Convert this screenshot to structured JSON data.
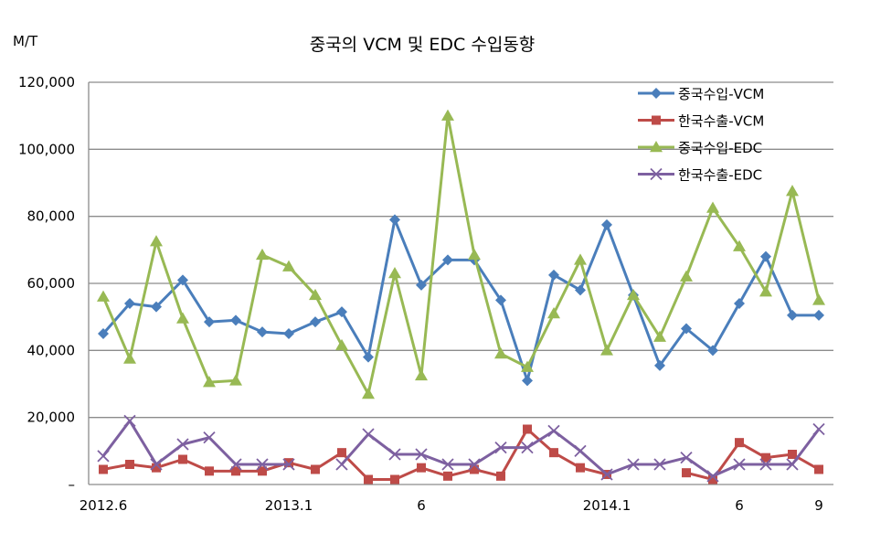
{
  "chart_data": {
    "type": "line",
    "title": "중국의 VCM 및 EDC 수입동향",
    "ylabel": "M/T",
    "xlabel": "",
    "ylim": [
      0,
      120000
    ],
    "yticks": [
      {
        "value": 0,
        "label": "–"
      },
      {
        "value": 20000,
        "label": "20,000"
      },
      {
        "value": 40000,
        "label": "40,000"
      },
      {
        "value": 60000,
        "label": "60,000"
      },
      {
        "value": 80000,
        "label": "80,000"
      },
      {
        "value": 100000,
        "label": "100,000"
      },
      {
        "value": 120000,
        "label": "120,000"
      }
    ],
    "grid": true,
    "legend_position": "top-right",
    "x_tick_labels": [
      {
        "index": 0,
        "label": "2012.6"
      },
      {
        "index": 7,
        "label": "2013.1"
      },
      {
        "index": 12,
        "label": "6"
      },
      {
        "index": 19,
        "label": "2014.1"
      },
      {
        "index": 24,
        "label": "6"
      },
      {
        "index": 27,
        "label": "9"
      }
    ],
    "categories": [
      "2012.6",
      "2012.7",
      "2012.8",
      "2012.9",
      "2012.10",
      "2012.11",
      "2012.12",
      "2013.1",
      "2013.2",
      "2013.3",
      "2013.4",
      "2013.5",
      "2013.6",
      "2013.7",
      "2013.8",
      "2013.9",
      "2013.10",
      "2013.11",
      "2013.12",
      "2014.1",
      "2014.2",
      "2014.3",
      "2014.4",
      "2014.5",
      "2014.6",
      "2014.7",
      "2014.8",
      "2014.9"
    ],
    "series": [
      {
        "name": "중국수입-VCM",
        "color": "#4a7ebb",
        "marker": "diamond",
        "values": [
          45000,
          54000,
          53000,
          61000,
          48500,
          49000,
          45500,
          45000,
          48500,
          51500,
          38000,
          79000,
          59500,
          67000,
          67000,
          55000,
          31000,
          62500,
          58000,
          77500,
          56500,
          35500,
          46500,
          40000,
          54000,
          68000,
          50500,
          50500
        ]
      },
      {
        "name": "한국수출-VCM",
        "color": "#be4b48",
        "marker": "square",
        "values": [
          4500,
          6000,
          5000,
          7500,
          4000,
          4000,
          4000,
          6500,
          4500,
          9500,
          1500,
          1500,
          5000,
          2500,
          4500,
          2500,
          16500,
          9500,
          5000,
          3000,
          null,
          null,
          3500,
          1500,
          12500,
          8000,
          9000,
          4500
        ]
      },
      {
        "name": "중국수입-EDC",
        "color": "#98b954",
        "marker": "triangle",
        "values": [
          56000,
          37500,
          72500,
          49500,
          30500,
          31000,
          68500,
          65000,
          56500,
          41500,
          27000,
          63000,
          32500,
          110000,
          68500,
          39000,
          35000,
          51000,
          67000,
          40000,
          56500,
          44000,
          62000,
          82500,
          71000,
          57500,
          87500,
          55000
        ]
      },
      {
        "name": "한국수출-EDC",
        "color": "#7d60a0",
        "marker": "x",
        "values": [
          8500,
          19000,
          6000,
          12000,
          14000,
          6000,
          6000,
          6000,
          null,
          6000,
          15000,
          9000,
          9000,
          6000,
          6000,
          11000,
          11000,
          16000,
          10000,
          3000,
          6000,
          6000,
          8000,
          2500,
          6000,
          6000,
          6000,
          16500
        ]
      }
    ]
  }
}
